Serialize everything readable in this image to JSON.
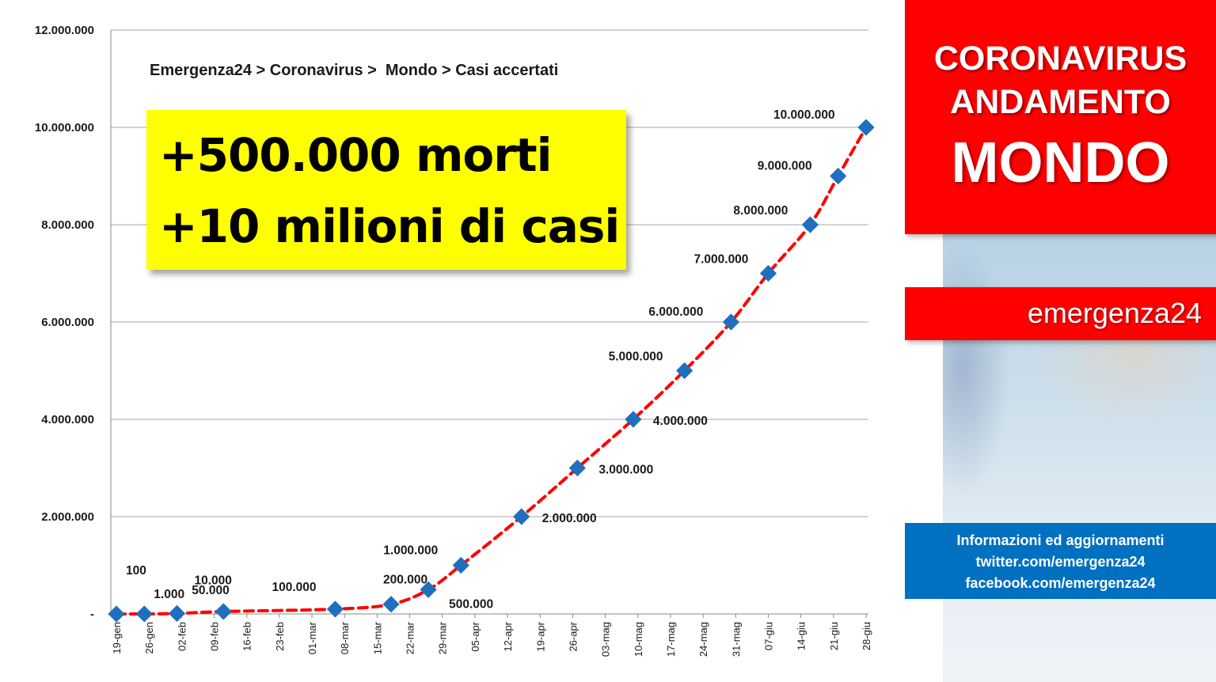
{
  "chart_data": {
    "type": "line",
    "breadcrumb": "Emergenza24 > Coronavirus >  Mondo > Casi accertati",
    "y_ticks": [
      "12.000.000",
      "10.000.000",
      "8.000.000",
      "6.000.000",
      "4.000.000",
      "2.000.000",
      "-"
    ],
    "ylim": [
      0,
      12000000
    ],
    "x_ticks": [
      "19-gen",
      "26-gen",
      "02-feb",
      "09-feb",
      "16-feb",
      "23-feb",
      "01-mar",
      "08-mar",
      "15-mar",
      "22-mar",
      "29-mar",
      "05-apr",
      "12-apr",
      "19-apr",
      "26-apr",
      "03-mag",
      "10-mag",
      "17-mag",
      "24-mag",
      "31-mag",
      "07-giu",
      "14-giu",
      "21-giu",
      "28-giu"
    ],
    "xlim": [
      "2020-01-19",
      "2020-06-28"
    ],
    "grid": "horizontal",
    "line_color": "#ff0000",
    "marker_color": "#1f6fbf",
    "points": [
      {
        "date": "2020-01-19",
        "value": 100,
        "label": "100"
      },
      {
        "date": "2020-01-25",
        "value": 1000,
        "label": "1.000"
      },
      {
        "date": "2020-02-01",
        "value": 10000,
        "label": "10.000"
      },
      {
        "date": "2020-02-11",
        "value": 50000,
        "label": "50.000"
      },
      {
        "date": "2020-03-06",
        "value": 100000,
        "label": "100.000"
      },
      {
        "date": "2020-03-18",
        "value": 200000,
        "label": "200.000"
      },
      {
        "date": "2020-03-26",
        "value": 500000,
        "label": "500.000"
      },
      {
        "date": "2020-04-02",
        "value": 1000000,
        "label": "1.000.000"
      },
      {
        "date": "2020-04-15",
        "value": 2000000,
        "label": "2.000.000"
      },
      {
        "date": "2020-04-27",
        "value": 3000000,
        "label": "3.000.000"
      },
      {
        "date": "2020-05-09",
        "value": 4000000,
        "label": "4.000.000"
      },
      {
        "date": "2020-05-20",
        "value": 5000000,
        "label": "5.000.000"
      },
      {
        "date": "2020-05-30",
        "value": 6000000,
        "label": "6.000.000"
      },
      {
        "date": "2020-06-07",
        "value": 7000000,
        "label": "7.000.000"
      },
      {
        "date": "2020-06-16",
        "value": 8000000,
        "label": "8.000.000"
      },
      {
        "date": "2020-06-22",
        "value": 9000000,
        "label": "9.000.000"
      },
      {
        "date": "2020-06-28",
        "value": 10000000,
        "label": "10.000.000"
      }
    ]
  },
  "callout": {
    "line1": "+500.000 morti",
    "line2": "+10 milioni di casi"
  },
  "side_panel": {
    "title_line1": "CORONAVIRUS",
    "title_line2": "ANDAMENTO",
    "title_line3": "MONDO",
    "brand": "emergenza24",
    "info_line1": "Informazioni ed aggiornamenti",
    "info_line2": "twitter.com/emergenza24",
    "info_line3": "facebook.com/emergenza24"
  }
}
